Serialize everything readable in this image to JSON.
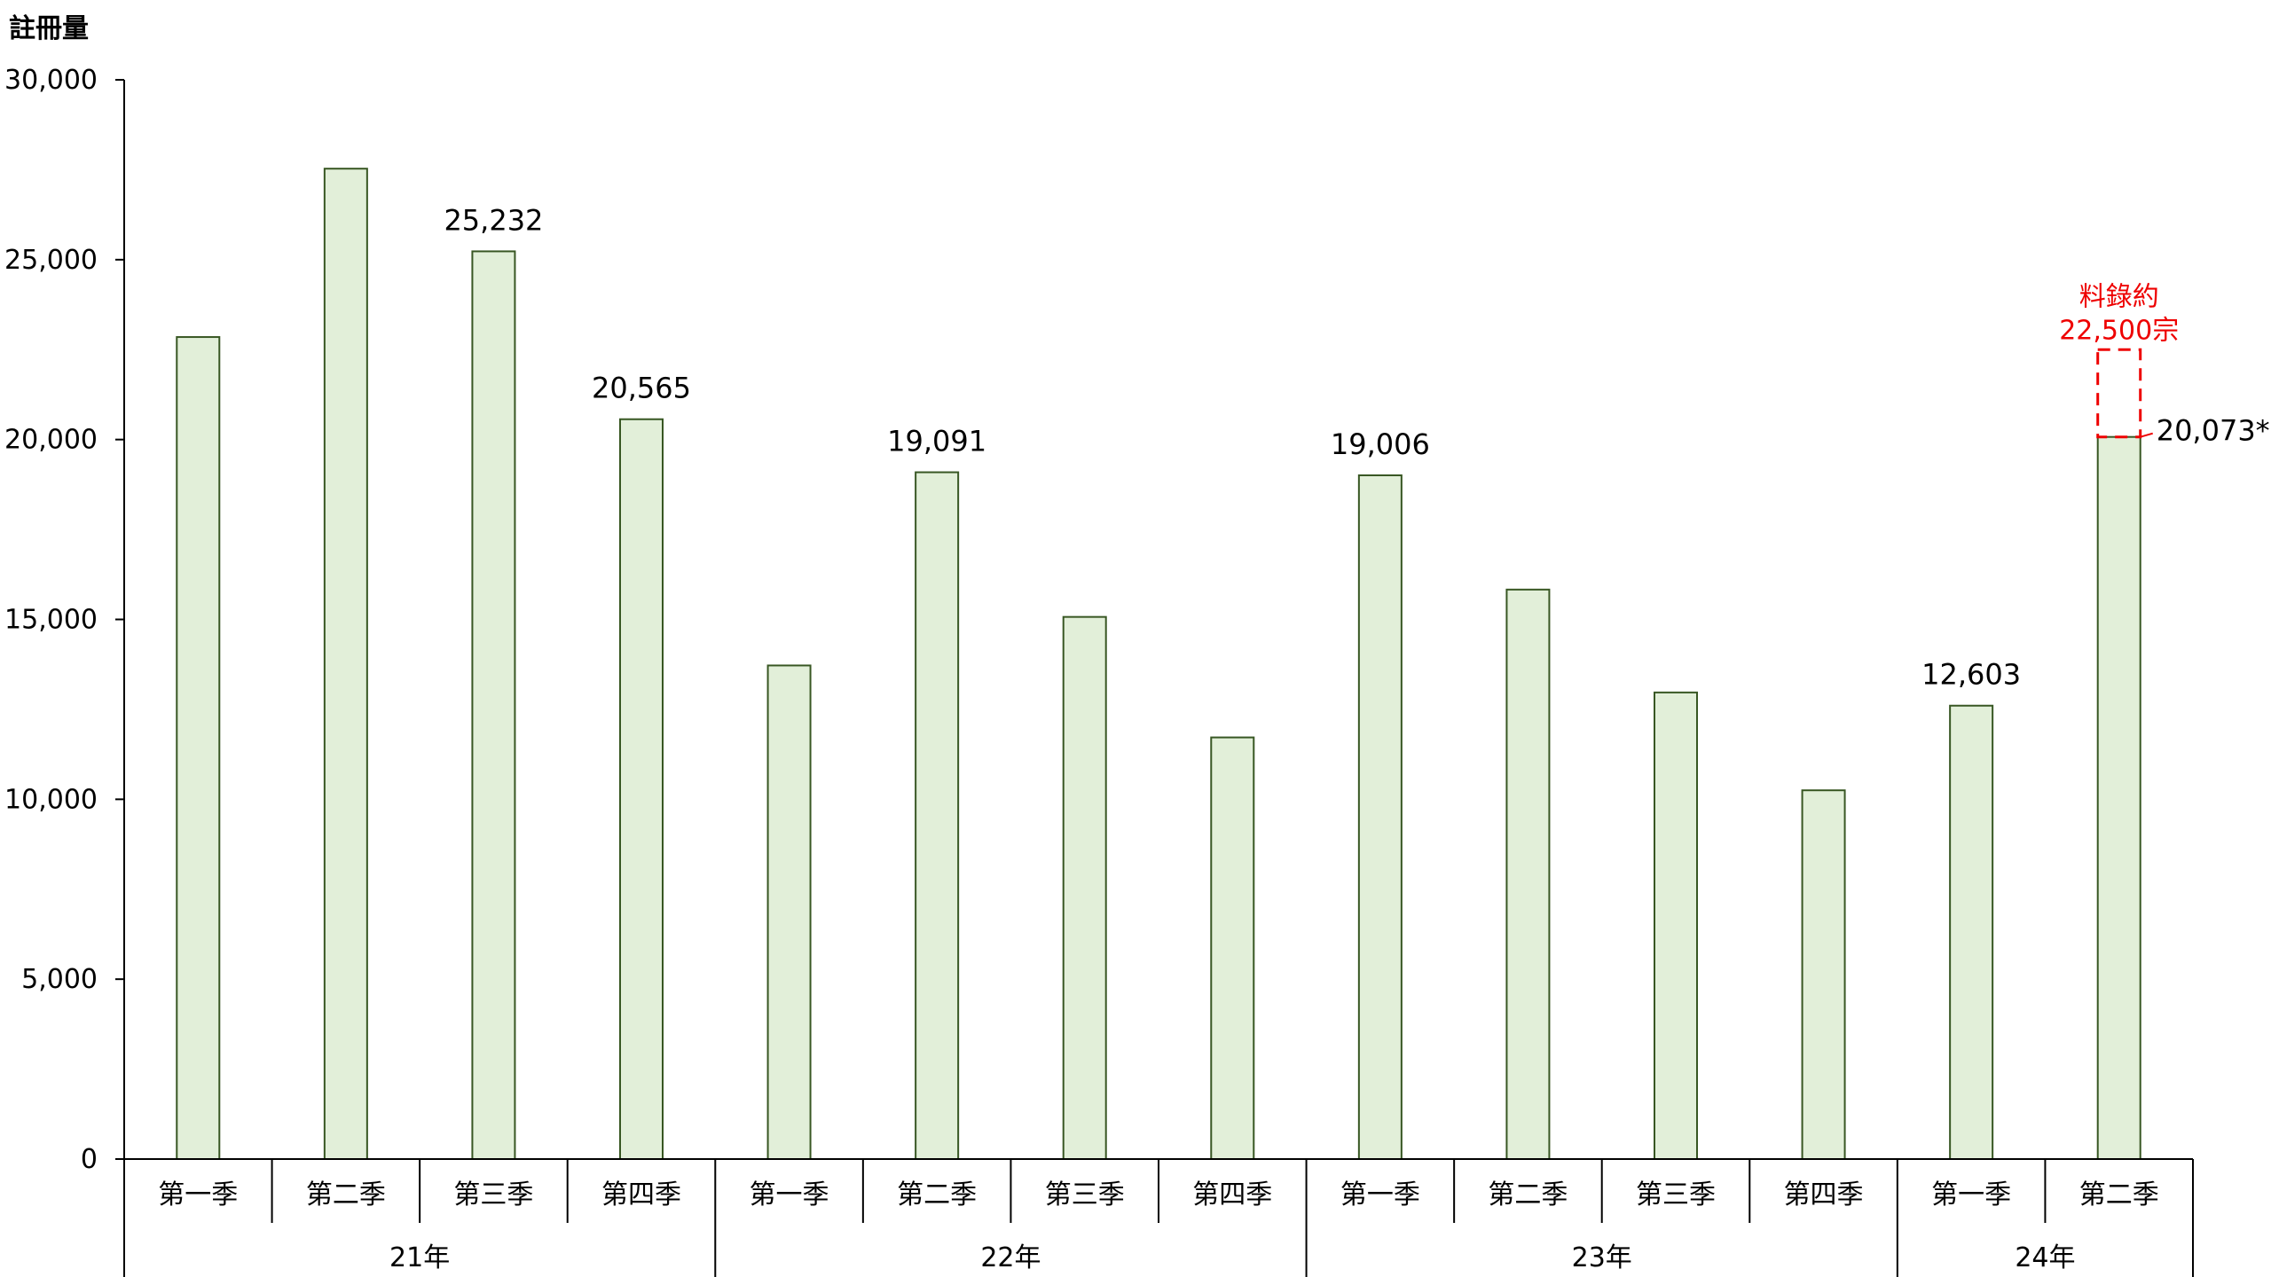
{
  "chart_data": {
    "type": "bar",
    "ylabel": "註冊量",
    "ylim": [
      0,
      30000
    ],
    "yticks": [
      0,
      5000,
      10000,
      15000,
      20000,
      25000,
      30000
    ],
    "ytick_labels": [
      "0",
      "5,000",
      "10,000",
      "15,000",
      "20,000",
      "25,000",
      "30,000"
    ],
    "grid": false,
    "legend": "none",
    "categories": [
      "第一季",
      "第二季",
      "第三季",
      "第四季",
      "第一季",
      "第二季",
      "第三季",
      "第四季",
      "第一季",
      "第二季",
      "第三季",
      "第四季",
      "第一季",
      "第二季"
    ],
    "groups": [
      {
        "label": "21年",
        "count": 4
      },
      {
        "label": "22年",
        "count": 4
      },
      {
        "label": "23年",
        "count": 4
      },
      {
        "label": "24年",
        "count": 2
      }
    ],
    "values": [
      22850,
      27530,
      25232,
      20565,
      13720,
      19091,
      15070,
      11720,
      19006,
      15830,
      12970,
      10250,
      12603,
      20073
    ],
    "data_labels": [
      null,
      null,
      "25,232",
      "20,565",
      null,
      "19,091",
      null,
      null,
      "19,006",
      null,
      null,
      null,
      "12,603",
      "20,073*"
    ],
    "projection": {
      "category_index": 13,
      "value": 22500,
      "label_line1": "料錄約",
      "label_line2": "22,500宗"
    },
    "colors": {
      "bar_fill": "#e2efd9",
      "bar_stroke": "#385723",
      "axis": "#000000",
      "projection": "#ee0000"
    }
  }
}
